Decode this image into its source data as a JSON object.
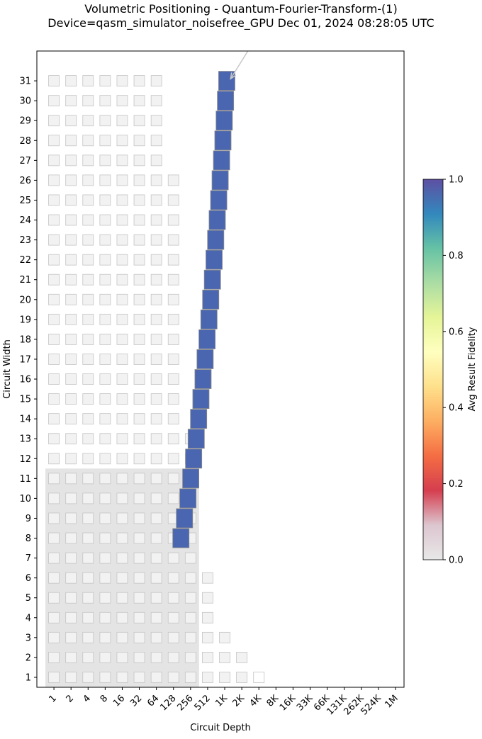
{
  "chart_data": {
    "type": "heatmap",
    "title_line1": "Volumetric Positioning - Quantum-Fourier-Transform-(1)",
    "title_line2": "Device=qasm_simulator_noisefree_GPU  Dec 01, 2024 08:28:05 UTC",
    "xlabel": "Circuit Depth",
    "ylabel": "Circuit Width",
    "x_tick_labels": [
      "1",
      "2",
      "4",
      "8",
      "16",
      "32",
      "64",
      "128",
      "256",
      "512",
      "1K",
      "2K",
      "4K",
      "8K",
      "16K",
      "33K",
      "66K",
      "131K",
      "262K",
      "524K",
      "1M"
    ],
    "y_tick_labels": [
      "1",
      "2",
      "3",
      "4",
      "5",
      "6",
      "7",
      "8",
      "9",
      "10",
      "11",
      "12",
      "13",
      "14",
      "15",
      "16",
      "17",
      "18",
      "19",
      "20",
      "21",
      "22",
      "23",
      "24",
      "25",
      "26",
      "27",
      "28",
      "29",
      "30",
      "31"
    ],
    "x_scale": "log2",
    "xlim_log2": [
      -1,
      20.5
    ],
    "ylim": [
      0.5,
      32.5
    ],
    "background_grid": {
      "max_depth_log2_by_width": [
        12,
        11,
        10,
        9,
        9,
        9,
        8,
        8,
        8,
        8,
        8,
        8,
        8,
        7,
        7,
        7,
        7,
        7,
        7,
        7,
        7,
        7,
        7,
        7,
        7,
        7,
        6,
        6,
        6,
        6,
        6
      ],
      "filled_gray_max_depth_log2_by_width": [
        11,
        11,
        10,
        9,
        9,
        9,
        8,
        8,
        8,
        8,
        8,
        8,
        8,
        7,
        7,
        7,
        7,
        7,
        7,
        7,
        7,
        7,
        7,
        7,
        7,
        7,
        6,
        6,
        6,
        6,
        6
      ],
      "filled_color": "#f2f2f2",
      "empty_color": "#ffffff"
    },
    "shaded_region": {
      "width_range": [
        1,
        11
      ],
      "depth_log2_range": [
        0,
        8
      ],
      "color": "#e4e4e4"
    },
    "series": [
      {
        "widths": [
          8,
          9,
          10,
          11,
          12,
          13,
          14,
          15,
          16,
          17,
          18,
          19,
          20,
          21,
          22,
          23,
          24,
          25,
          26,
          27,
          28,
          29,
          30,
          31
        ],
        "depths": [
          173,
          200,
          230,
          258,
          290,
          322,
          355,
          390,
          425,
          462,
          500,
          540,
          580,
          622,
          665,
          710,
          756,
          803,
          851,
          901,
          952,
          1004,
          1058,
          1113
        ],
        "fidelities": [
          1.0,
          1.0,
          1.0,
          1.0,
          1.0,
          1.0,
          1.0,
          1.0,
          1.0,
          1.0,
          1.0,
          1.0,
          1.0,
          1.0,
          1.0,
          1.0,
          1.0,
          1.0,
          1.0,
          1.0,
          1.0,
          1.0,
          1.0,
          1.0
        ],
        "color": "#4a66b0"
      }
    ],
    "annotation_arrow": {
      "from": {
        "depth": 3200,
        "width": 32.9
      },
      "to": {
        "depth": 1300,
        "width": 31.1
      },
      "color": "#c8c8c8"
    },
    "colorbar": {
      "label": "Avg Result Fidelity",
      "ticks": [
        "0.0",
        "0.2",
        "0.4",
        "0.6",
        "0.8",
        "1.0"
      ],
      "range": [
        0,
        1
      ],
      "stops": [
        "#e8e8e8",
        "#dcc6cf",
        "#d53e4f",
        "#f46d43",
        "#fdae61",
        "#fee08b",
        "#ffffbf",
        "#e6f598",
        "#abdda4",
        "#66c2a5",
        "#3288bd",
        "#5e4fa2"
      ]
    }
  }
}
